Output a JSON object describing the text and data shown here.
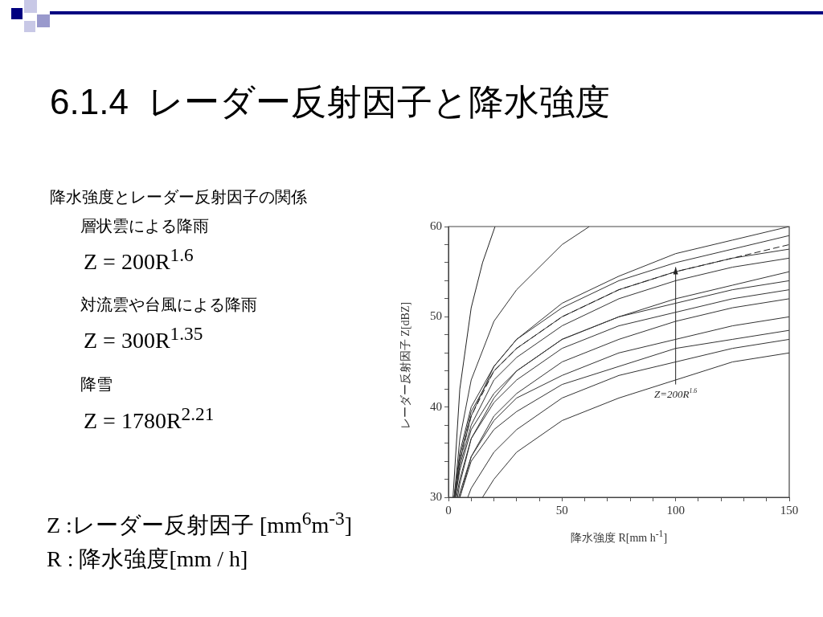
{
  "chart_data": {
    "type": "line",
    "title": "6.1.4  レーダー反射因子と降水強度",
    "xlabel": "降水強度 R[mm h$^{-1}$]",
    "ylabel": "レーダー反射因子 Z[dBZ]",
    "xlim": [
      0,
      150
    ],
    "ylim": [
      30,
      60
    ],
    "xticks": [
      0,
      {
        "value": 10,
        "label": null
      },
      {
        "value": 20,
        "label": null
      },
      {
        "value": 30,
        "label": null
      },
      {
        "value": 40,
        "label": null
      },
      50,
      {
        "value": 60,
        "label": null
      },
      {
        "value": 70,
        "label": null
      },
      {
        "value": 80,
        "label": null
      },
      {
        "value": 90,
        "label": null
      },
      100,
      {
        "value": 110,
        "label": null
      },
      {
        "value": 120,
        "label": null
      },
      {
        "value": 130,
        "label": null
      },
      {
        "value": 140,
        "label": null
      },
      150
    ],
    "yticks": [
      30,
      {
        "value": 32,
        "label": null
      },
      {
        "value": 34,
        "label": null
      },
      {
        "value": 36,
        "label": null
      },
      {
        "value": 38,
        "label": null
      },
      40,
      {
        "value": 42,
        "label": null
      },
      {
        "value": 44,
        "label": null
      },
      {
        "value": 46,
        "label": null
      },
      {
        "value": 48,
        "label": null
      },
      50,
      {
        "value": 52,
        "label": null
      },
      {
        "value": 54,
        "label": null
      },
      {
        "value": 56,
        "label": null
      },
      {
        "value": 58,
        "label": null
      },
      60
    ],
    "grid": false,
    "legend": false,
    "marker": "none",
    "line_style": "solid",
    "series": [
      {
        "color": "#222222",
        "x": [
          2,
          5,
          10,
          15,
          20.5
        ],
        "values": [
          30,
          42,
          51,
          56,
          60
        ]
      },
      {
        "color": "#333333",
        "x": [
          2.5,
          5,
          10,
          20,
          30,
          50,
          62
        ],
        "values": [
          30,
          36.5,
          43,
          49.5,
          53,
          58,
          60
        ]
      },
      {
        "color": "#333333",
        "x": [
          3,
          5,
          10,
          20,
          30,
          50,
          75,
          100,
          125,
          150
        ],
        "values": [
          30,
          34,
          39,
          44.5,
          47.5,
          51.5,
          54.5,
          57,
          58.5,
          60
        ]
      },
      {
        "color": "#333333",
        "x": [
          2.5,
          5,
          10,
          20,
          30,
          50,
          75,
          100,
          125,
          150
        ],
        "values": [
          30,
          35,
          40,
          44.5,
          47.5,
          51,
          54,
          56,
          57.5,
          59
        ]
      },
      {
        "color": "#222222",
        "x": [
          2.7,
          5,
          10,
          20,
          30,
          50,
          75,
          100,
          125,
          150
        ],
        "values": [
          30,
          34,
          39,
          44,
          46.5,
          50,
          53,
          55,
          56.5,
          58
        ],
        "line_style": "dashed"
      },
      {
        "color": "#333333",
        "x": [
          2.5,
          5,
          10,
          20,
          30,
          50,
          75,
          100,
          125,
          150
        ],
        "values": [
          30,
          34.5,
          39.5,
          44,
          46.5,
          50,
          53,
          55,
          56.5,
          57.5
        ]
      },
      {
        "color": "#333333",
        "x": [
          3,
          5,
          10,
          20,
          30,
          50,
          75,
          100,
          125,
          150
        ],
        "values": [
          30,
          33.5,
          38,
          43,
          45.5,
          49,
          52,
          54,
          55.5,
          56.5
        ]
      },
      {
        "color": "#333333",
        "x": [
          4,
          5,
          10,
          20,
          30,
          50,
          75,
          100,
          125,
          150
        ],
        "values": [
          30,
          31.5,
          36.5,
          41,
          44,
          47.5,
          50,
          52,
          53.5,
          55
        ]
      },
      {
        "color": "#333333",
        "x": [
          3,
          5,
          10,
          20,
          30,
          50,
          75,
          100,
          125,
          150
        ],
        "values": [
          30,
          33,
          37.5,
          41.5,
          44,
          47.5,
          50,
          51.5,
          53,
          54
        ]
      },
      {
        "color": "#333333",
        "x": [
          3.5,
          5,
          10,
          20,
          30,
          50,
          75,
          100,
          125,
          150
        ],
        "values": [
          30,
          32,
          36.5,
          40.5,
          43,
          46.5,
          49,
          50.5,
          52,
          53
        ]
      },
      {
        "color": "#333333",
        "x": [
          5,
          10,
          20,
          30,
          50,
          75,
          100,
          125,
          150
        ],
        "values": [
          30,
          34.5,
          39,
          41.5,
          45,
          47.5,
          49.5,
          51,
          52
        ]
      },
      {
        "color": "#333333",
        "x": [
          4.5,
          5,
          10,
          20,
          30,
          50,
          75,
          100,
          125,
          150
        ],
        "values": [
          30,
          30.5,
          34.5,
          38.5,
          41,
          43.5,
          46,
          47.5,
          49,
          50
        ]
      },
      {
        "color": "#333333",
        "x": [
          5,
          10,
          20,
          30,
          50,
          75,
          100,
          125,
          150
        ],
        "values": [
          30,
          34,
          37.5,
          39.5,
          42.5,
          44.5,
          46.5,
          47.5,
          48.5
        ]
      },
      {
        "color": "#333333",
        "x": [
          8.5,
          10,
          20,
          30,
          50,
          75,
          100,
          125,
          150
        ],
        "values": [
          30,
          31,
          35,
          37.5,
          41,
          43.5,
          45,
          46.5,
          47.5
        ]
      },
      {
        "color": "#333333",
        "x": [
          15,
          20,
          30,
          50,
          75,
          100,
          125,
          150
        ],
        "values": [
          30,
          32,
          35,
          38.5,
          41,
          43,
          45,
          46
        ]
      }
    ],
    "annotations": [
      {
        "text": "Z=200R$^{1.6}$",
        "x": 100,
        "y": 55.5
      },
      "降水強度とレーダー反射因子の関係",
      "層状雲による降雨",
      "Z = 200R$^{1.6}$",
      "対流雲や台風による降雨",
      "Z = 300R$^{1.35}$",
      "降雪",
      "Z = 1780R$^{2.21}$",
      "Z :レーダー反射因子 [mm$^{6}$m$^{-3}$]",
      "R : 降水強度[mm / h]"
    ]
  }
}
